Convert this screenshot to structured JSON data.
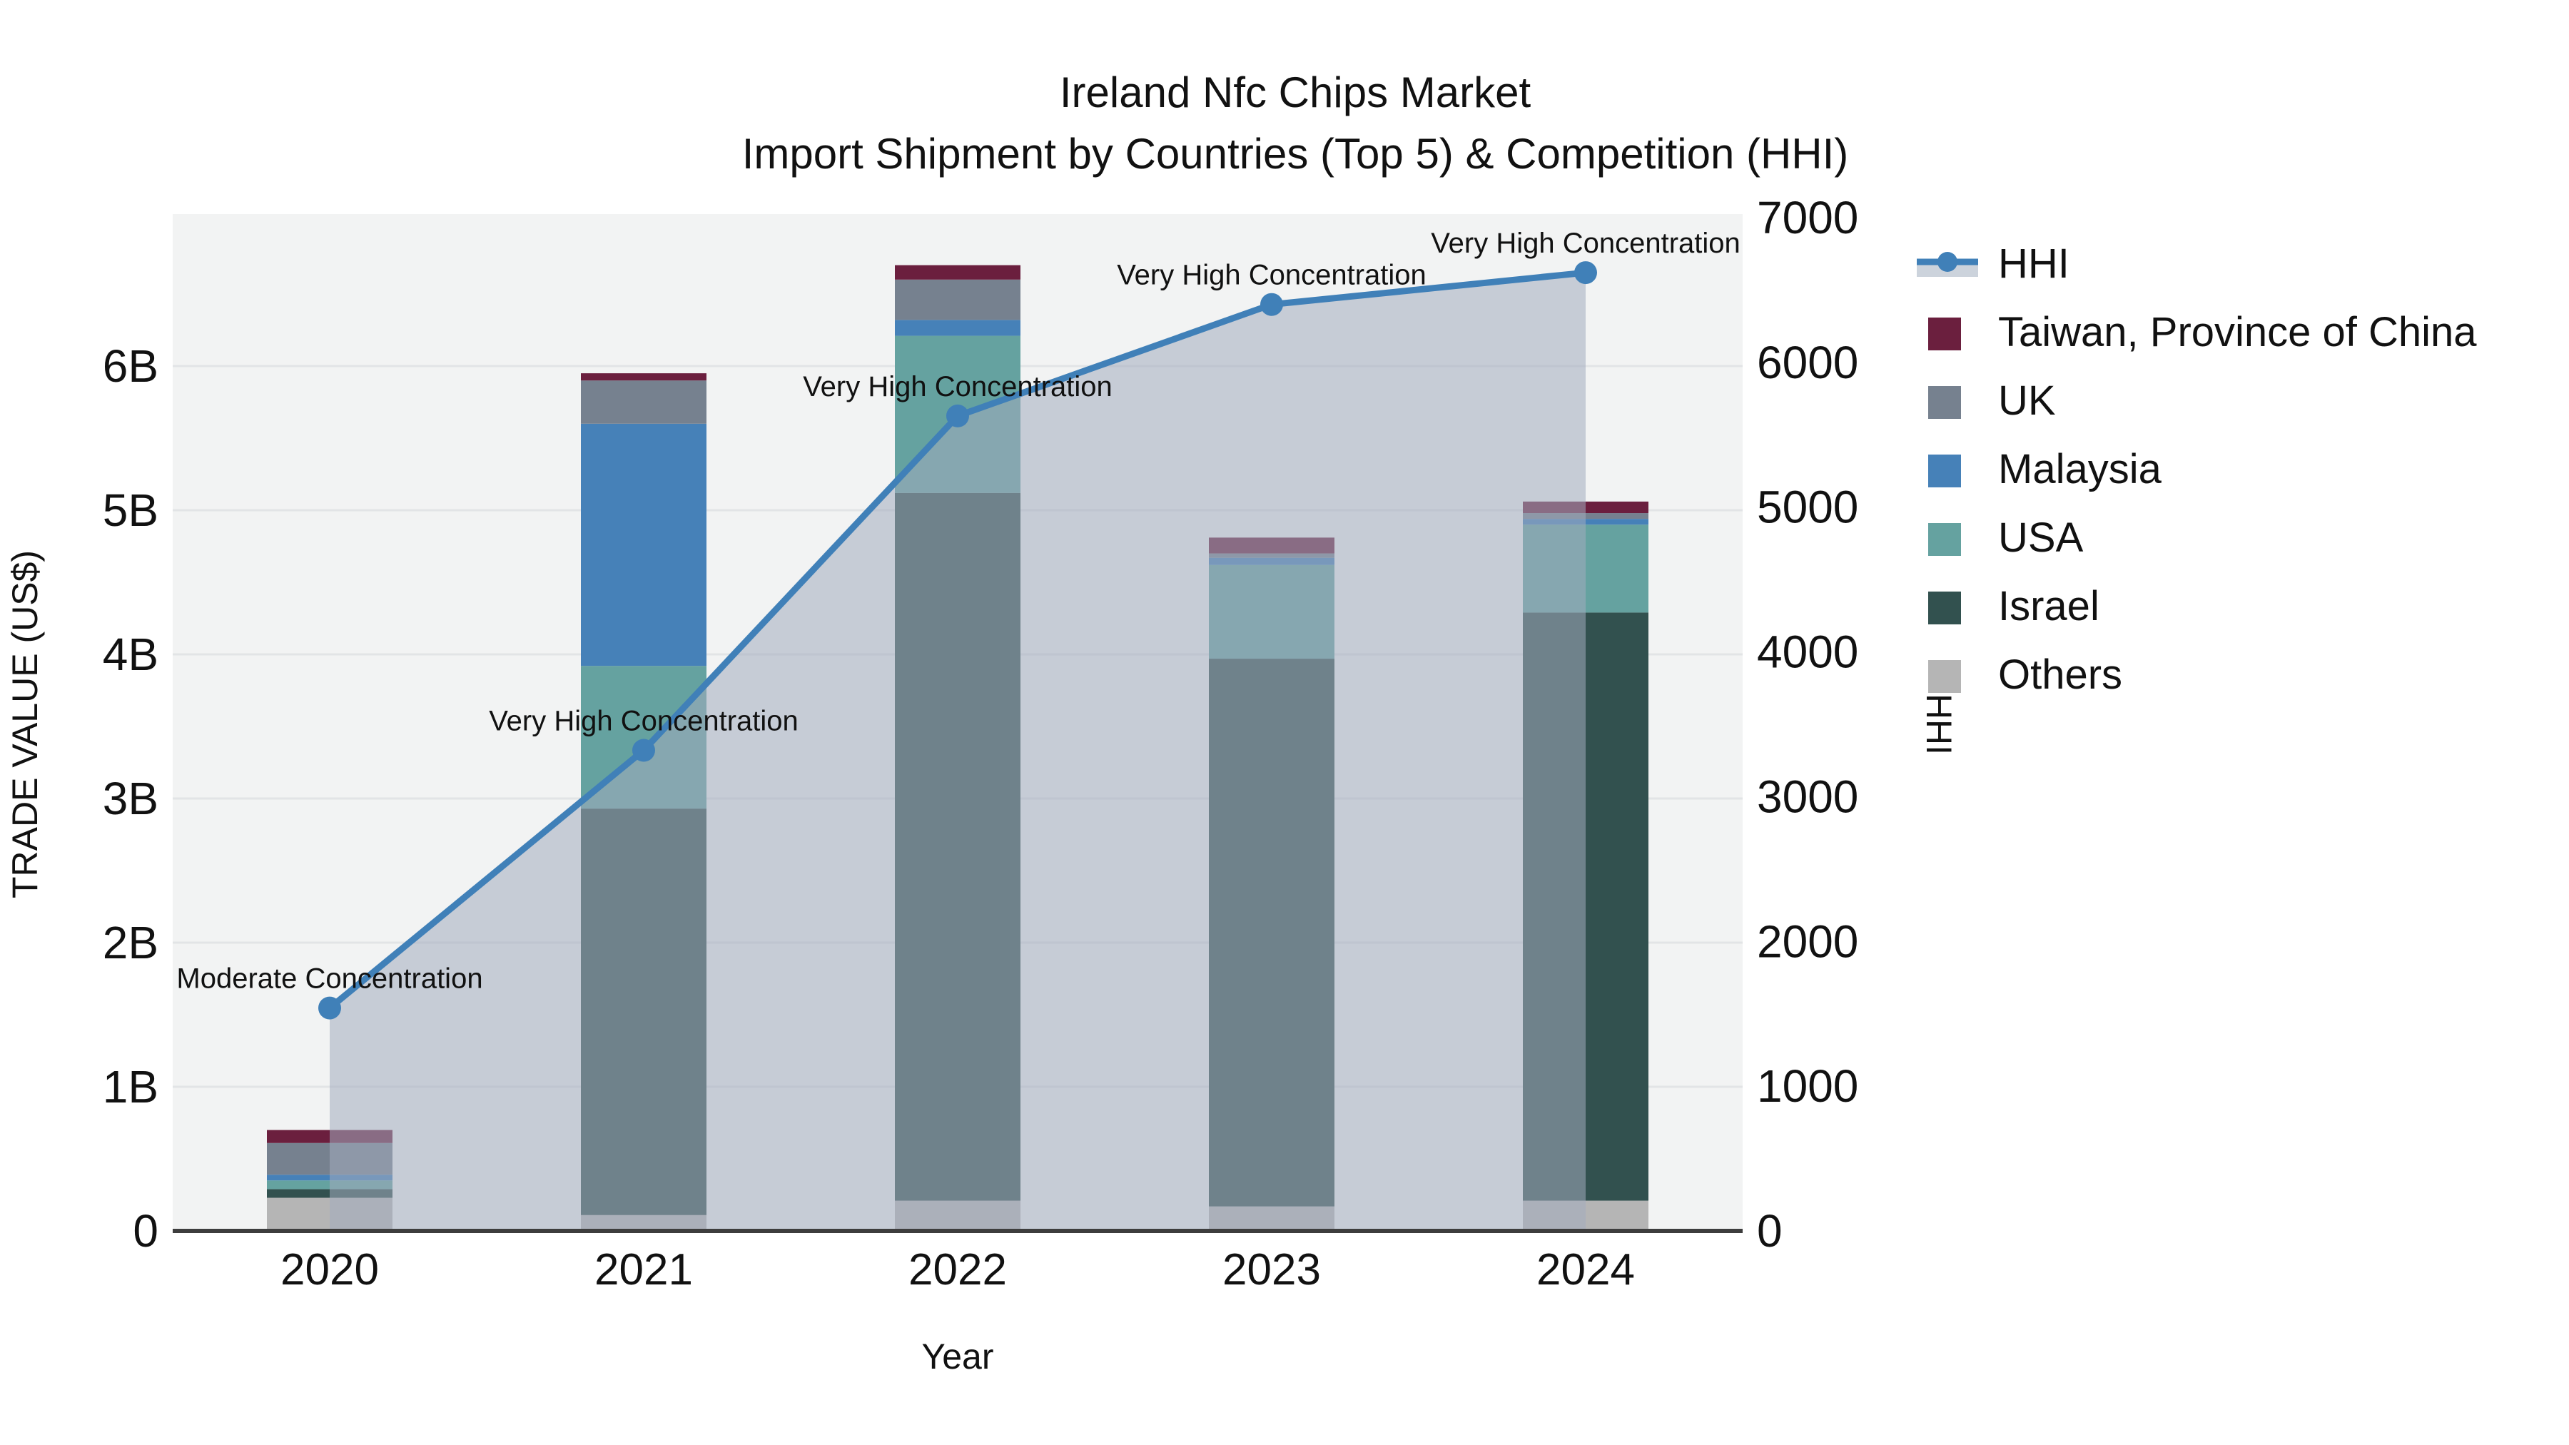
{
  "title": {
    "line1": "Ireland Nfc Chips Market",
    "line2": "Import Shipment by Countries (Top 5) & Competition (HHI)"
  },
  "axes": {
    "y_left": {
      "label": "TRADE VALUE (US$)",
      "ticks": [
        "0",
        "1B",
        "2B",
        "3B",
        "4B",
        "5B",
        "6B"
      ]
    },
    "y_right": {
      "label": "HHI",
      "ticks": [
        "0",
        "1000",
        "2000",
        "3000",
        "4000",
        "5000",
        "6000",
        "7000"
      ]
    },
    "x": {
      "label": "Year"
    }
  },
  "legend": {
    "items": [
      {
        "name": "HHI",
        "type": "line",
        "color": "#4080b8",
        "band": "#ccd3dc"
      },
      {
        "name": "Taiwan, Province of China",
        "type": "square",
        "color": "#6b1f3e"
      },
      {
        "name": "UK",
        "type": "square",
        "color": "#76818f"
      },
      {
        "name": "Malaysia",
        "type": "square",
        "color": "#4681b8"
      },
      {
        "name": "USA",
        "type": "square",
        "color": "#65a2a0"
      },
      {
        "name": "Israel",
        "type": "square",
        "color": "#32514f"
      },
      {
        "name": "Others",
        "type": "square",
        "color": "#b5b5b5"
      }
    ]
  },
  "chart_data": {
    "type": "bar",
    "subtype": "stacked-bars-with-line",
    "title": "Ireland Nfc Chips Market — Import Shipment by Countries (Top 5) & Competition (HHI)",
    "categories": [
      "2020",
      "2021",
      "2022",
      "2023",
      "2024"
    ],
    "xlabel": "Year",
    "ylabel_left": "TRADE VALUE (US$)",
    "ylabel_right": "HHI",
    "ylim_left_B": [
      0,
      7.05
    ],
    "ylim_right": [
      0,
      7000
    ],
    "units": "billions of US$",
    "grid": true,
    "legend_position": "right",
    "series": [
      {
        "name": "Taiwan, Province of China",
        "color": "#6b1f3e",
        "values": [
          0.09,
          0.05,
          0.1,
          0.11,
          0.08
        ]
      },
      {
        "name": "UK",
        "color": "#76818f",
        "values": [
          0.22,
          0.3,
          0.28,
          0.03,
          0.04
        ]
      },
      {
        "name": "Malaysia",
        "color": "#4681b8",
        "values": [
          0.04,
          1.68,
          0.11,
          0.05,
          0.04
        ]
      },
      {
        "name": "USA",
        "color": "#65a2a0",
        "values": [
          0.06,
          0.99,
          1.09,
          0.65,
          0.61
        ]
      },
      {
        "name": "Israel",
        "color": "#32514f",
        "values": [
          0.06,
          2.82,
          4.91,
          3.8,
          4.08
        ]
      },
      {
        "name": "Others",
        "color": "#b5b5b5",
        "values": [
          0.23,
          0.11,
          0.21,
          0.17,
          0.21
        ]
      }
    ],
    "bar_totals_B": [
      0.7,
      5.95,
      6.7,
      4.81,
      5.06
    ],
    "line_series": {
      "name": "HHI",
      "color": "#4080b8",
      "area_fill": "rgba(163,172,190,0.55)",
      "values": [
        1540,
        3320,
        5630,
        6400,
        6620
      ]
    },
    "annotations": [
      {
        "category": "2020",
        "text": "Moderate Concentration"
      },
      {
        "category": "2021",
        "text": "Very High Concentration"
      },
      {
        "category": "2022",
        "text": "Very High Concentration"
      },
      {
        "category": "2023",
        "text": "Very High Concentration"
      },
      {
        "category": "2024",
        "text": "Very High Concentration"
      }
    ],
    "colors": {
      "plot_background": "#f2f3f3",
      "gridline": "#e2e4e6",
      "baseline": "#3d3d3d"
    }
  }
}
